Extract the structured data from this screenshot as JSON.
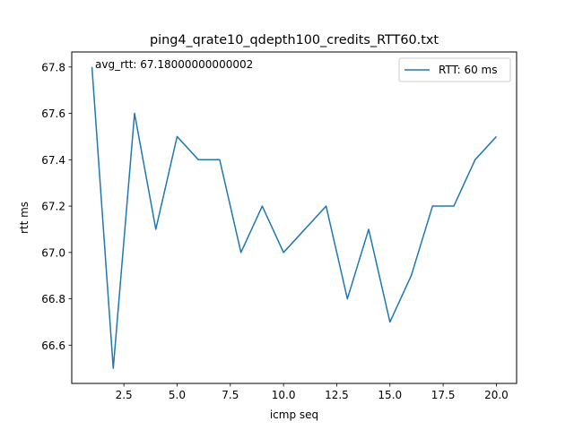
{
  "chart_data": {
    "type": "line",
    "title": "ping4_qrate10_qdepth100_credits_RTT60.txt",
    "xlabel": "icmp seq",
    "ylabel": "rtt ms",
    "xlim": [
      0.05,
      20.95
    ],
    "ylim": [
      66.435,
      67.865
    ],
    "xticks": [
      2.5,
      5.0,
      7.5,
      10.0,
      12.5,
      15.0,
      17.5,
      20.0
    ],
    "xtick_labels": [
      "2.5",
      "5.0",
      "7.5",
      "10.0",
      "12.5",
      "15.0",
      "17.5",
      "20.0"
    ],
    "yticks": [
      66.6,
      66.8,
      67.0,
      67.2,
      67.4,
      67.6,
      67.8
    ],
    "ytick_labels": [
      "66.6",
      "66.8",
      "67.0",
      "67.2",
      "67.4",
      "67.6",
      "67.8"
    ],
    "grid": false,
    "legend_position": "upper right",
    "series": [
      {
        "name": "RTT: 60 ms",
        "color": "#1f77b4",
        "x": [
          1,
          2,
          3,
          4,
          5,
          6,
          7,
          8,
          9,
          10,
          11,
          12,
          13,
          14,
          15,
          16,
          17,
          18,
          19,
          20
        ],
        "y": [
          67.8,
          66.5,
          67.6,
          67.1,
          67.5,
          67.4,
          67.4,
          67.0,
          67.2,
          67.0,
          67.1,
          67.2,
          66.8,
          67.1,
          66.7,
          66.9,
          67.2,
          67.2,
          67.4,
          67.5
        ]
      }
    ],
    "annotation": {
      "text": "avg_rtt: 67.18000000000002",
      "x": 1,
      "y": 67.8
    }
  }
}
